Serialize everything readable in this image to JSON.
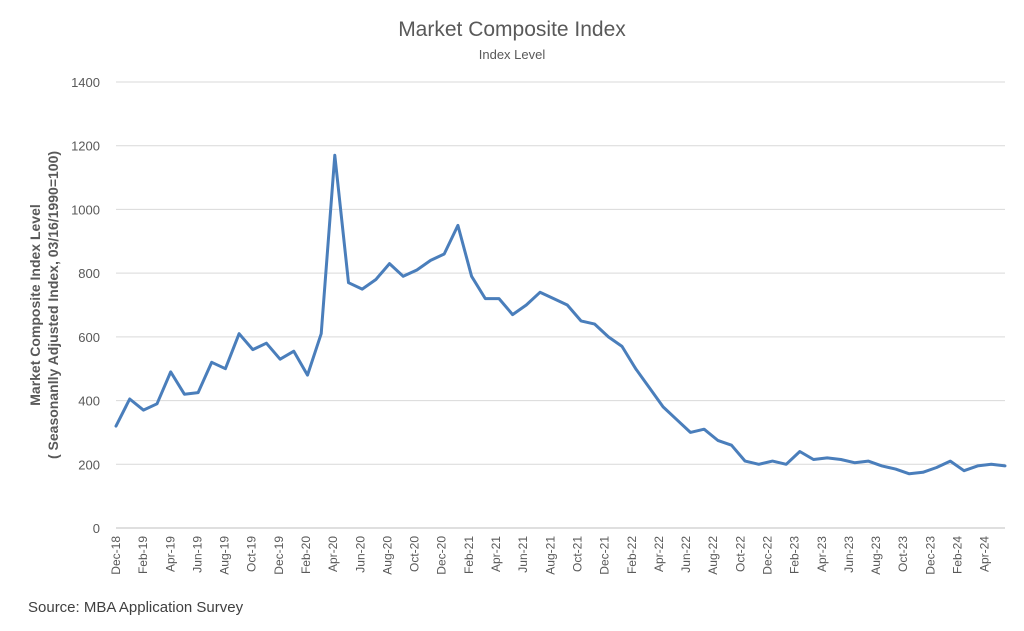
{
  "chart_data": {
    "type": "line",
    "title": "Market Composite Index",
    "subtitle": "Index Level",
    "ylabel_line1": "Market Composite Index Level",
    "ylabel_line2": "( Seasonanlly Adjusted Index, 03/16/1990=100)",
    "source": "Source: MBA Application Survey",
    "ylim": [
      0,
      1400
    ],
    "yticks": [
      0,
      200,
      400,
      600,
      800,
      1000,
      1200,
      1400
    ],
    "xlim": [
      "2018-12",
      "2024-05"
    ],
    "xtick_labels": [
      "Dec-18",
      "Feb-19",
      "Apr-19",
      "Jun-19",
      "Aug-19",
      "Oct-19",
      "Dec-19",
      "Feb-20",
      "Apr-20",
      "Jun-20",
      "Aug-20",
      "Oct-20",
      "Dec-20",
      "Feb-21",
      "Apr-21",
      "Jun-21",
      "Aug-21",
      "Oct-21",
      "Dec-21",
      "Feb-22",
      "Apr-22",
      "Jun-22",
      "Aug-22",
      "Oct-22",
      "Dec-22",
      "Feb-23",
      "Apr-23",
      "Jun-23",
      "Aug-23",
      "Oct-23",
      "Dec-23",
      "Feb-24",
      "Apr-24"
    ],
    "line_color": "#4a7ebb",
    "grid": true,
    "legend": "none",
    "series": [
      {
        "x": [
          "2018-12",
          "2019-01",
          "2019-02",
          "2019-03",
          "2019-04",
          "2019-05",
          "2019-06",
          "2019-07",
          "2019-08",
          "2019-09",
          "2019-10",
          "2019-11",
          "2019-12",
          "2020-01",
          "2020-02",
          "2020-03",
          "2020-04",
          "2020-05",
          "2020-06",
          "2020-07",
          "2020-08",
          "2020-09",
          "2020-10",
          "2020-11",
          "2020-12",
          "2021-01",
          "2021-02",
          "2021-03",
          "2021-04",
          "2021-05",
          "2021-06",
          "2021-07",
          "2021-08",
          "2021-09",
          "2021-10",
          "2021-11",
          "2021-12",
          "2022-01",
          "2022-02",
          "2022-03",
          "2022-04",
          "2022-05",
          "2022-06",
          "2022-07",
          "2022-08",
          "2022-09",
          "2022-10",
          "2022-11",
          "2022-12",
          "2023-01",
          "2023-02",
          "2023-03",
          "2023-04",
          "2023-05",
          "2023-06",
          "2023-07",
          "2023-08",
          "2023-09",
          "2023-10",
          "2023-11",
          "2023-12",
          "2024-01",
          "2024-02",
          "2024-03",
          "2024-04",
          "2024-05"
        ],
        "values": [
          320,
          405,
          370,
          390,
          490,
          420,
          425,
          520,
          500,
          610,
          560,
          580,
          530,
          555,
          480,
          610,
          1170,
          770,
          750,
          780,
          830,
          790,
          810,
          840,
          860,
          950,
          790,
          720,
          720,
          670,
          700,
          740,
          720,
          700,
          650,
          640,
          600,
          570,
          500,
          440,
          380,
          340,
          300,
          310,
          275,
          260,
          210,
          200,
          210,
          200,
          240,
          215,
          220,
          215,
          205,
          210,
          195,
          185,
          170,
          175,
          190,
          210,
          180,
          195,
          200,
          195
        ]
      }
    ]
  }
}
